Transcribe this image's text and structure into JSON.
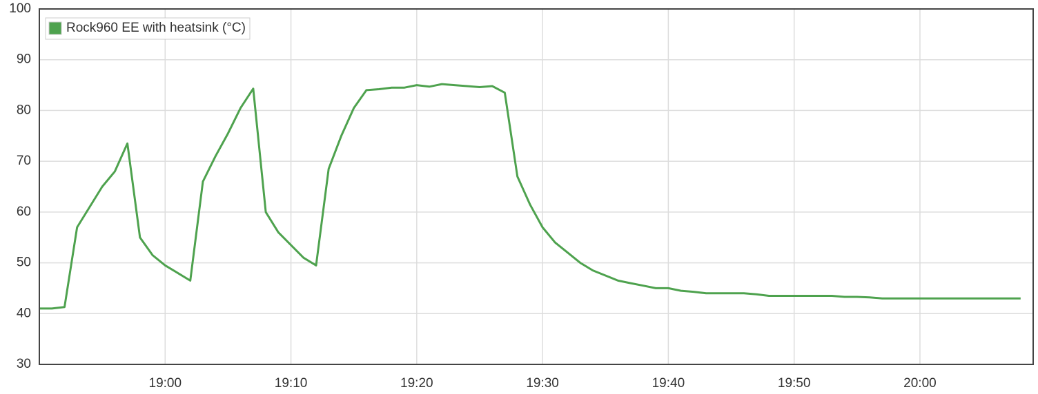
{
  "chart_data": {
    "type": "line",
    "x": [
      "18:50",
      "18:51",
      "18:52",
      "18:53",
      "18:54",
      "18:55",
      "18:56",
      "18:57",
      "18:58",
      "18:59",
      "19:00",
      "19:01",
      "19:02",
      "19:03",
      "19:04",
      "19:05",
      "19:06",
      "19:07",
      "19:08",
      "19:09",
      "19:10",
      "19:11",
      "19:12",
      "19:13",
      "19:14",
      "19:15",
      "19:16",
      "19:17",
      "19:18",
      "19:19",
      "19:20",
      "19:21",
      "19:22",
      "19:23",
      "19:24",
      "19:25",
      "19:26",
      "19:27",
      "19:28",
      "19:29",
      "19:30",
      "19:31",
      "19:32",
      "19:33",
      "19:34",
      "19:35",
      "19:36",
      "19:37",
      "19:38",
      "19:39",
      "19:40",
      "19:41",
      "19:42",
      "19:43",
      "19:44",
      "19:45",
      "19:46",
      "19:47",
      "19:48",
      "19:49",
      "19:50",
      "19:51",
      "19:52",
      "19:53",
      "19:54",
      "19:55",
      "19:56",
      "19:57",
      "19:58",
      "19:59",
      "20:00",
      "20:01",
      "20:02",
      "20:03",
      "20:04",
      "20:05",
      "20:06",
      "20:07",
      "20:08"
    ],
    "series": [
      {
        "name": "Rock960 EE with heatsink (°C)",
        "color": "#4ea24e",
        "values": [
          41,
          41,
          41.3,
          57,
          61,
          65,
          68,
          73.5,
          55,
          51.5,
          49.5,
          48,
          46.5,
          66,
          71,
          75.5,
          80.5,
          84.3,
          60,
          56,
          53.5,
          51,
          49.5,
          68.5,
          75,
          80.5,
          84,
          84.2,
          84.5,
          84.5,
          85,
          84.7,
          85.2,
          85,
          84.8,
          84.6,
          84.8,
          83.5,
          67,
          61.5,
          57,
          54,
          52,
          50,
          48.5,
          47.5,
          46.5,
          46,
          45.5,
          45,
          45,
          44.5,
          44.3,
          44,
          44,
          44,
          44,
          43.8,
          43.5,
          43.5,
          43.5,
          43.5,
          43.5,
          43.5,
          43.3,
          43.3,
          43.2,
          43,
          43,
          43,
          43,
          43,
          43,
          43,
          43,
          43,
          43,
          43,
          43
        ]
      }
    ],
    "xlim": [
      "18:50",
      "20:09"
    ],
    "xticks": [
      "19:00",
      "19:10",
      "19:20",
      "19:30",
      "19:40",
      "19:50",
      "20:00"
    ],
    "ylim": [
      30,
      100
    ],
    "yticks": [
      30,
      40,
      50,
      60,
      70,
      80,
      90,
      100
    ],
    "grid": true,
    "legend": "top-left"
  }
}
